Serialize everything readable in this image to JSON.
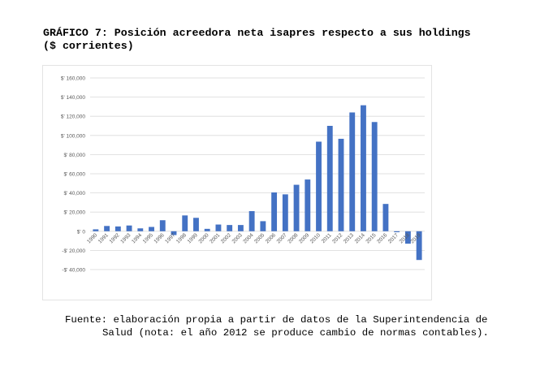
{
  "title": "GRÁFICO 7: Posición acreedora neta isapres respecto a sus holdings\n($ corrientes)",
  "source": {
    "line1": "Fuente: elaboración propia a partir de datos de la Superintendencia de",
    "line2": "Salud (nota: el año 2012 se produce cambio de normas contables)."
  },
  "colors": {
    "bar": "#4472c4",
    "grid": "#d9d9d9",
    "axis_text": "#595959",
    "frame": "#e3e3e3"
  },
  "chart_data": {
    "type": "bar",
    "title": "",
    "xlabel": "",
    "ylabel": "",
    "ylim": [
      -40000,
      160000
    ],
    "grid": true,
    "legend": "none",
    "yticks": [
      -40000,
      -20000,
      0,
      20000,
      40000,
      60000,
      80000,
      100000,
      120000,
      140000,
      160000
    ],
    "ytick_labels": [
      "-$' 40,000",
      "-$' 20,000",
      "$' 0",
      "$' 20,000",
      "$' 40,000",
      "$' 60,000",
      "$' 80,000",
      "$' 100,000",
      "$' 120,000",
      "$' 140,000",
      "$' 160,000"
    ],
    "categories": [
      "1990",
      "1991",
      "1992",
      "1993",
      "1994",
      "1995",
      "1996",
      "1997",
      "1998",
      "1999",
      "2000",
      "2001",
      "2002",
      "2003",
      "2004",
      "2005",
      "2006",
      "2007",
      "2008",
      "2009",
      "2010",
      "2011",
      "2012",
      "2013",
      "2014",
      "2015",
      "2016",
      "2017",
      "2018",
      "2019"
    ],
    "values": [
      2000,
      5500,
      5000,
      6000,
      3000,
      4500,
      11500,
      -4000,
      16500,
      14000,
      2500,
      7000,
      6500,
      6500,
      21000,
      10500,
      40500,
      38500,
      48500,
      54000,
      93500,
      110000,
      96500,
      124000,
      131500,
      114000,
      28500,
      -1000,
      -13000,
      -30000
    ]
  }
}
